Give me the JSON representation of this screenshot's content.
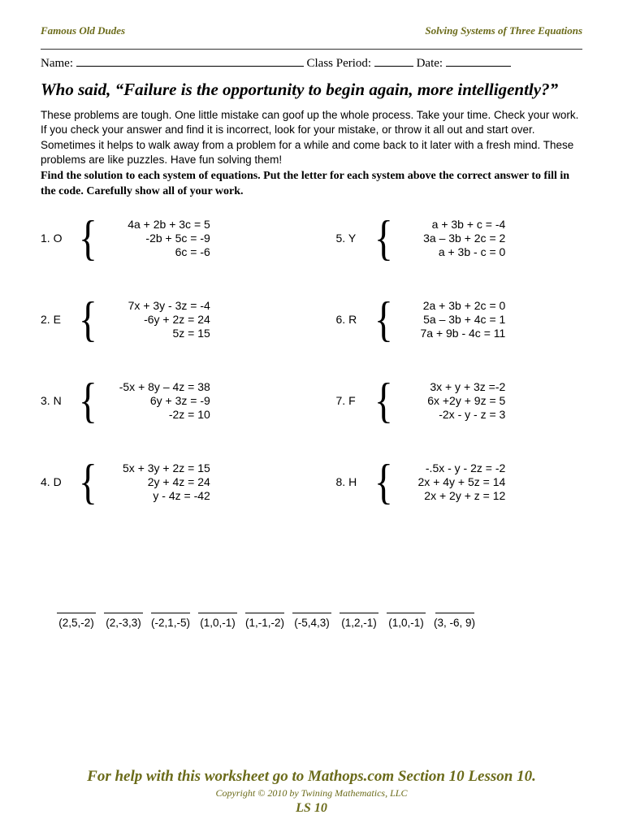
{
  "header": {
    "left": "Famous Old Dudes",
    "right": "Solving Systems of Three Equations"
  },
  "fields": {
    "name_label": "Name:",
    "period_label": "Class Period:",
    "date_label": "Date:"
  },
  "question": "Who said, “Failure is the opportunity to begin again, more intelligently?”",
  "intro": "These problems are tough.  One little mistake can goof up the whole process.  Take your time.  Check your work.  If you check your answer and find it is incorrect, look for your mistake, or throw it all out and start over.  Sometimes it helps to walk away from a problem for a while and come back to it later with a fresh mind.  These problems are like puzzles.  Have fun solving them!",
  "instructions": "Find the solution to each system of equations.  Put the letter for each system above the correct answer to fill in the code.  Carefully show all of your work.",
  "problems_left": [
    {
      "num": "1.",
      "letter": "O",
      "eqs": [
        "4a + 2b + 3c = 5",
        "-2b + 5c = -9",
        "6c = -6"
      ]
    },
    {
      "num": "2.",
      "letter": "E",
      "eqs": [
        "7x + 3y - 3z = -4",
        "-6y + 2z = 24",
        "5z = 15"
      ]
    },
    {
      "num": "3.",
      "letter": "N",
      "eqs": [
        "-5x + 8y – 4z =  38",
        "6y + 3z =  -9",
        "-2z =  10"
      ]
    },
    {
      "num": "4.",
      "letter": "D",
      "eqs": [
        "5x + 3y + 2z =  15",
        "2y + 4z =  24",
        "y -  4z = -42"
      ]
    }
  ],
  "problems_right": [
    {
      "num": "5.",
      "letter": "Y",
      "eqs": [
        "a + 3b +  c =  -4",
        "3a – 3b + 2c =   2",
        "a + 3b -   c =   0"
      ]
    },
    {
      "num": "6.",
      "letter": "R",
      "eqs": [
        "2a + 3b + 2c =   0",
        "5a – 3b + 4c =   1",
        "7a + 9b - 4c =  11"
      ]
    },
    {
      "num": "7.",
      "letter": "F",
      "eqs": [
        "3x +  y + 3z =-2",
        "6x +2y + 9z = 5",
        "-2x -  y -   z = 3"
      ]
    },
    {
      "num": "8.",
      "letter": "H",
      "eqs": [
        "-.5x  -  y - 2z = -2",
        "2x  + 4y + 5z = 14",
        "2x  + 2y +  z = 12"
      ]
    }
  ],
  "answers": [
    "(2,5,-2)",
    "(2,-3,3)",
    "(-2,1,-5)",
    "(1,0,-1)",
    "(1,-1,-2)",
    "(-5,4,3)",
    "(1,2,-1)",
    "(1,0,-1)",
    "(3, -6, 9)"
  ],
  "footer": {
    "help": "For help with this worksheet go to Mathops.com Section 10 Lesson 10.",
    "copyright": "Copyright © 2010 by Twining Mathematics, LLC",
    "code": "LS 10"
  },
  "colors": {
    "olive": "#6b6b1a",
    "text": "#000000",
    "background": "#ffffff"
  }
}
